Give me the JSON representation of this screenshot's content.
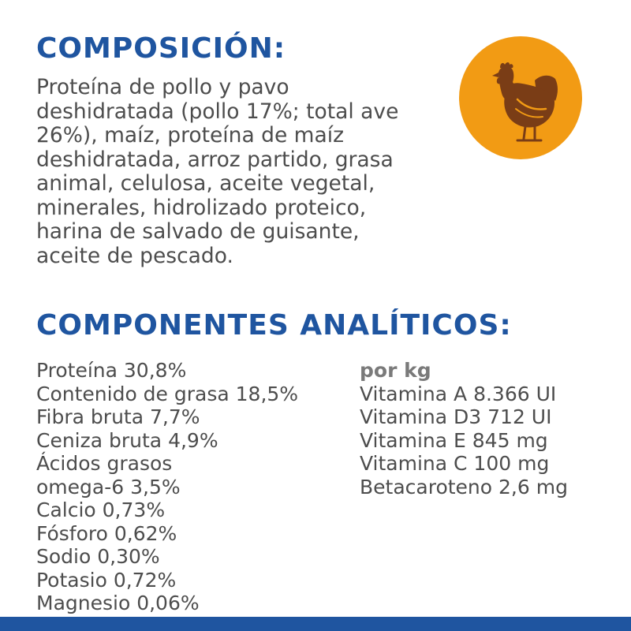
{
  "composition": {
    "heading": "COMPOSICIÓN:",
    "lines": [
      "Proteína de pollo y pavo",
      "deshidratada (pollo 17%; total ave",
      "26%), maíz, proteína de maíz",
      "deshidratada, arroz partido, grasa",
      "animal, celulosa, aceite vegetal,",
      "minerales, hidrolizado proteico,",
      "harina de salvado de guisante,",
      "aceite de pescado."
    ]
  },
  "analytics": {
    "heading": "COMPONENTES ANALÍTICOS:",
    "left_items": [
      "Proteína 30,8%",
      "Contenido de grasa 18,5%",
      "Fibra bruta 7,7%",
      "Ceniza bruta 4,9%",
      "Ácidos grasos",
      "omega-6 3,5%",
      "Calcio 0,73%",
      "Fósforo 0,62%",
      "Sodio 0,30%",
      "Potasio 0,72%",
      "Magnesio 0,06%"
    ],
    "per_kg_label": "por kg",
    "right_items": [
      "Vitamina A 8.366 UI",
      "Vitamina D3 712 UI",
      "Vitamina E 845 mg",
      "Vitamina C 100 mg",
      "Betacaroteno 2,6 mg"
    ]
  },
  "icon": {
    "name": "chicken-icon",
    "circle_color": "#f29b14",
    "figure_color": "#7a3d16"
  },
  "colors": {
    "heading": "#1f55a0",
    "body_text": "#4d4d4d",
    "bottom_bar": "#1f55a0"
  }
}
